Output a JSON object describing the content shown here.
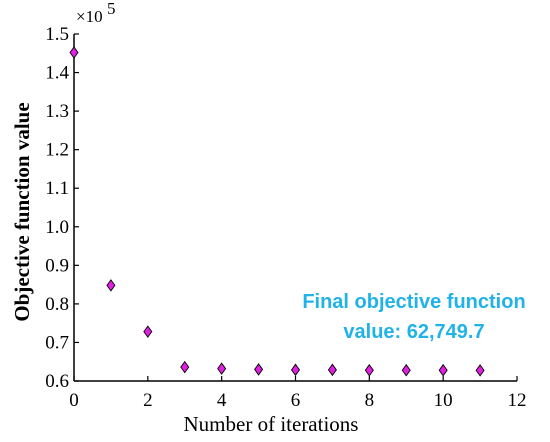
{
  "chart_data": {
    "type": "scatter",
    "marker": "diamond",
    "marker_color": "#e020e0",
    "x": [
      0,
      1,
      2,
      3,
      4,
      5,
      6,
      7,
      8,
      9,
      10,
      11
    ],
    "y": [
      1.452,
      0.848,
      0.728,
      0.636,
      0.632,
      0.63,
      0.629,
      0.629,
      0.628,
      0.628,
      0.628,
      0.6275
    ],
    "xlabel": "Number of iterations",
    "ylabel": "Objective function value",
    "xlim": [
      0,
      12
    ],
    "ylim": [
      0.6,
      1.5
    ],
    "x_ticks": [
      "0",
      "2",
      "4",
      "6",
      "8",
      "10",
      "12"
    ],
    "y_ticks": [
      "0.6",
      "0.7",
      "0.8",
      "0.9",
      "1.0",
      "1.1",
      "1.2",
      "1.3",
      "1.4",
      "1.5"
    ],
    "y_multiplier": "×10",
    "y_multiplier_exp": "5",
    "grid": false,
    "annotation": {
      "line1": "Final objective function",
      "line2": "value: 62,749.7",
      "color": "#21b3e8"
    }
  }
}
